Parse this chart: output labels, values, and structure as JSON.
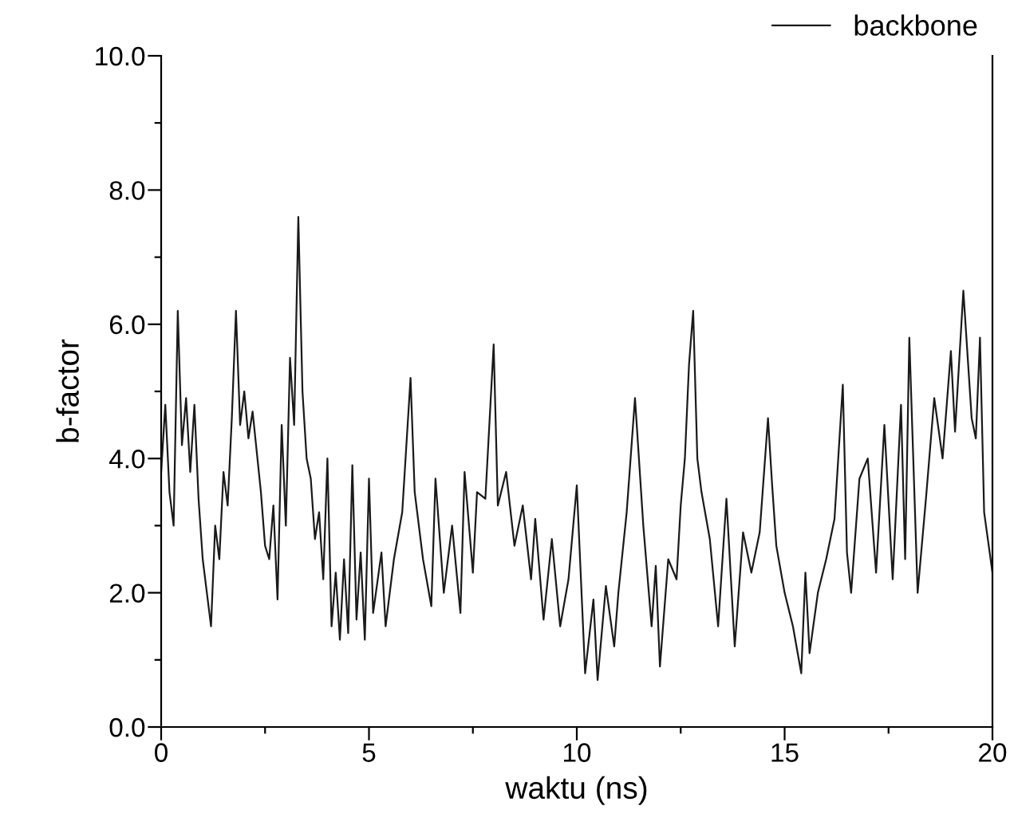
{
  "chart_data": {
    "type": "line",
    "xlabel": "waktu (ns)",
    "ylabel": "b-factor",
    "legend": "top right",
    "grid": false,
    "xlim": [
      0,
      20
    ],
    "ylim": [
      0,
      10
    ],
    "xticks": [
      0,
      {
        "value": 2.5,
        "label": null
      },
      5,
      {
        "value": 7.5,
        "label": null
      },
      10,
      {
        "value": 12.5,
        "label": null
      },
      15,
      {
        "value": 17.5,
        "label": null
      },
      20
    ],
    "yticks": [
      {
        "value": 0,
        "label": "0.0"
      },
      {
        "value": 1,
        "label": null
      },
      {
        "value": 2,
        "label": "2.0"
      },
      {
        "value": 3,
        "label": null
      },
      {
        "value": 4,
        "label": "4.0"
      },
      {
        "value": 5,
        "label": null
      },
      {
        "value": 6,
        "label": "6.0"
      },
      {
        "value": 7,
        "label": null
      },
      {
        "value": 8,
        "label": "8.0"
      },
      {
        "value": 9,
        "label": null
      },
      {
        "value": 10,
        "label": "10.0"
      }
    ],
    "series": [
      {
        "name": "backbone",
        "color": "#1a1a1a",
        "x": [
          0,
          0.1,
          0.2,
          0.3,
          0.4,
          0.5,
          0.6,
          0.7,
          0.8,
          0.9,
          1.0,
          1.1,
          1.2,
          1.3,
          1.4,
          1.5,
          1.6,
          1.7,
          1.8,
          1.9,
          2.0,
          2.1,
          2.2,
          2.4,
          2.5,
          2.6,
          2.7,
          2.8,
          2.9,
          3.0,
          3.1,
          3.2,
          3.3,
          3.4,
          3.5,
          3.6,
          3.7,
          3.8,
          3.9,
          4.0,
          4.1,
          4.2,
          4.3,
          4.4,
          4.5,
          4.6,
          4.7,
          4.8,
          4.9,
          5.0,
          5.1,
          5.3,
          5.4,
          5.6,
          5.8,
          6.0,
          6.1,
          6.3,
          6.5,
          6.6,
          6.8,
          7.0,
          7.2,
          7.3,
          7.5,
          7.6,
          7.8,
          8.0,
          8.1,
          8.3,
          8.5,
          8.7,
          8.9,
          9.0,
          9.2,
          9.4,
          9.6,
          9.8,
          10.0,
          10.2,
          10.4,
          10.5,
          10.7,
          10.9,
          11.0,
          11.2,
          11.4,
          11.6,
          11.8,
          11.9,
          12.0,
          12.2,
          12.4,
          12.5,
          12.6,
          12.7,
          12.8,
          12.9,
          13.0,
          13.2,
          13.4,
          13.6,
          13.8,
          14.0,
          14.2,
          14.4,
          14.6,
          14.7,
          14.8,
          15.0,
          15.2,
          15.4,
          15.5,
          15.6,
          15.8,
          16.0,
          16.2,
          16.4,
          16.5,
          16.6,
          16.8,
          17.0,
          17.2,
          17.4,
          17.6,
          17.8,
          17.9,
          18.0,
          18.2,
          18.4,
          18.6,
          18.8,
          19.0,
          19.1,
          19.3,
          19.5,
          19.6,
          19.7,
          19.8,
          20.0
        ],
        "values": [
          3.8,
          4.8,
          3.5,
          3.0,
          6.2,
          4.2,
          4.9,
          3.8,
          4.8,
          3.4,
          2.5,
          2.0,
          1.5,
          3.0,
          2.5,
          3.8,
          3.3,
          4.6,
          6.2,
          4.5,
          5.0,
          4.3,
          4.7,
          3.5,
          2.7,
          2.5,
          3.3,
          1.9,
          4.5,
          3.0,
          5.5,
          4.5,
          7.6,
          5.0,
          4.0,
          3.7,
          2.8,
          3.2,
          2.2,
          4.0,
          1.5,
          2.3,
          1.3,
          2.5,
          1.4,
          3.9,
          1.6,
          2.6,
          1.3,
          3.7,
          1.7,
          2.6,
          1.5,
          2.5,
          3.2,
          5.2,
          3.5,
          2.5,
          1.8,
          3.7,
          2.0,
          3.0,
          1.7,
          3.8,
          2.3,
          3.5,
          3.4,
          5.7,
          3.3,
          3.8,
          2.7,
          3.3,
          2.2,
          3.1,
          1.6,
          2.8,
          1.5,
          2.2,
          3.6,
          0.8,
          1.9,
          0.7,
          2.1,
          1.2,
          2.0,
          3.2,
          4.9,
          3.0,
          1.5,
          2.4,
          0.9,
          2.5,
          2.2,
          3.3,
          4.0,
          5.4,
          6.2,
          4.0,
          3.5,
          2.8,
          1.5,
          3.4,
          1.2,
          2.9,
          2.3,
          2.9,
          4.6,
          3.6,
          2.7,
          2.0,
          1.5,
          0.8,
          2.3,
          1.1,
          2.0,
          2.5,
          3.1,
          5.1,
          2.6,
          2.0,
          3.7,
          4.0,
          2.3,
          4.5,
          2.2,
          4.8,
          2.5,
          5.8,
          2.0,
          3.4,
          4.9,
          4.0,
          5.6,
          4.4,
          6.5,
          4.6,
          4.3,
          5.8,
          3.2,
          2.3
        ]
      }
    ]
  }
}
